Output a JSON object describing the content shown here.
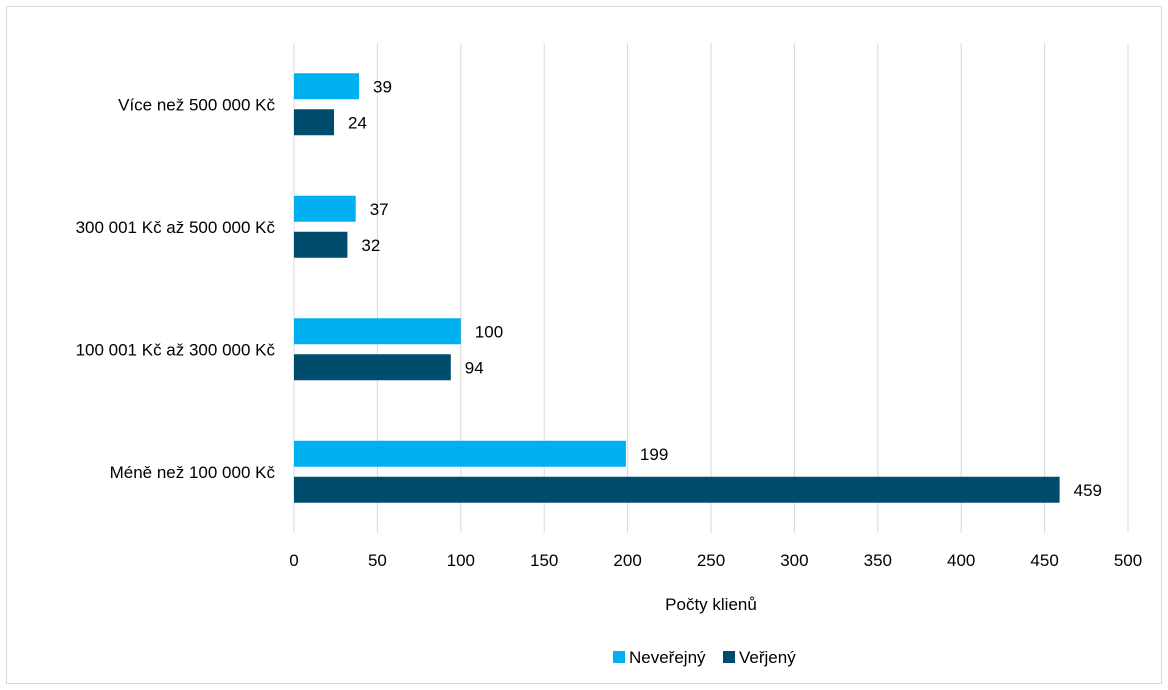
{
  "chart_data": {
    "type": "bar",
    "orientation": "horizontal",
    "categories": [
      "Více než 500 000 Kč",
      "300 001 Kč až 500 000 Kč",
      "100 001 Kč až 300 000 Kč",
      "Méně než 100 000 Kč"
    ],
    "series": [
      {
        "name": "Neveřejný",
        "color": "#00b0f0",
        "values": [
          39,
          37,
          100,
          199
        ]
      },
      {
        "name": "Veřjený",
        "color": "#004c6d",
        "values": [
          24,
          32,
          94,
          459
        ]
      }
    ],
    "title": "",
    "xlabel": "Počty klienů",
    "ylabel": "",
    "xlim": [
      0,
      500
    ],
    "x_ticks": [
      0,
      50,
      100,
      150,
      200,
      250,
      300,
      350,
      400,
      450,
      500
    ],
    "grid": {
      "vertical": true,
      "horizontal": false,
      "color": "#d9d9d9"
    },
    "data_labels": true,
    "legend_position": "bottom"
  }
}
